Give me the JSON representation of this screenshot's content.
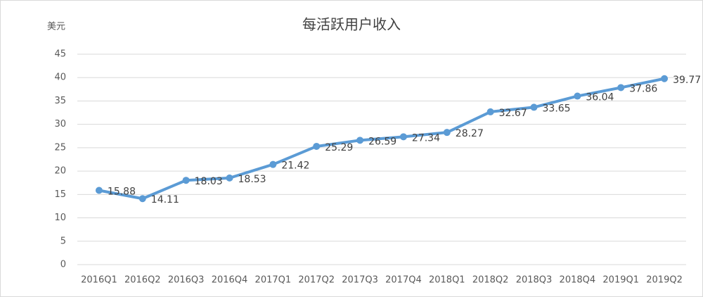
{
  "chart_data": {
    "type": "line",
    "title": "每活跃用户收入",
    "y_label": "美元",
    "categories": [
      "2016Q1",
      "2016Q2",
      "2016Q3",
      "2016Q4",
      "2017Q1",
      "2017Q2",
      "2017Q3",
      "2017Q4",
      "2018Q1",
      "2018Q2",
      "2018Q3",
      "2018Q4",
      "2019Q1",
      "2019Q2"
    ],
    "series": [
      {
        "name": "每活跃用户收入",
        "color": "#5b9bd5",
        "values": [
          15.88,
          14.11,
          18.03,
          18.53,
          21.42,
          25.29,
          26.59,
          27.34,
          28.27,
          32.67,
          33.65,
          36.04,
          37.86,
          39.77
        ]
      }
    ],
    "ylim": [
      0,
      45
    ],
    "yticks": [
      0,
      5,
      10,
      15,
      20,
      25,
      30,
      35,
      40,
      45
    ],
    "grid": true,
    "data_labels": true
  }
}
